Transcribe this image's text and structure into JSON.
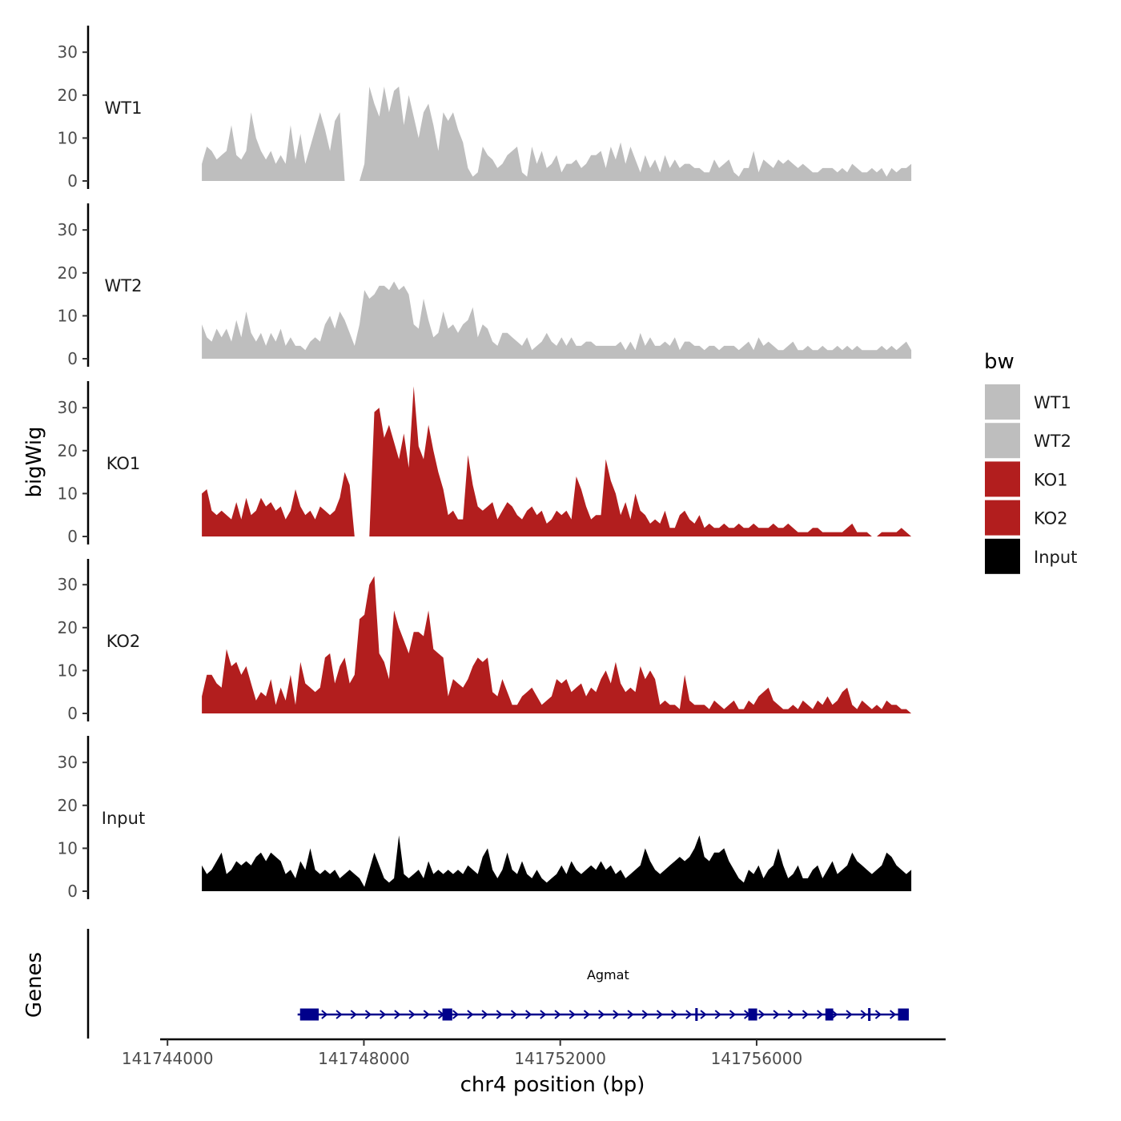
{
  "chart_data": {
    "type": "area",
    "title": "",
    "xlabel": "chr4 position (bp)",
    "ylabel": "bigWig",
    "genes_label": "Genes",
    "xlim": [
      141743850,
      141759850
    ],
    "ylim": [
      0,
      35
    ],
    "x_ticks": [
      141744000,
      141748000,
      141752000,
      141756000
    ],
    "x_tick_labels": [
      "141744000",
      "141748000",
      "141752000",
      "141756000"
    ],
    "y_ticks": [
      0,
      10,
      20,
      30
    ],
    "y_tick_labels": [
      "0",
      "10",
      "20",
      "30"
    ],
    "legend": {
      "title": "bw",
      "entries": [
        {
          "name": "WT1",
          "color": "#bebebe"
        },
        {
          "name": "WT2",
          "color": "#bebebe"
        },
        {
          "name": "KO1",
          "color": "#b21e1e"
        },
        {
          "name": "KO2",
          "color": "#b21e1e"
        },
        {
          "name": "Input",
          "color": "#000000"
        }
      ]
    },
    "x_start": 141744700,
    "x_end": 141759150,
    "series": [
      {
        "name": "WT1",
        "color": "#bebebe",
        "values": [
          4,
          8,
          7,
          5,
          6,
          7,
          13,
          6,
          5,
          7,
          16,
          10,
          7,
          5,
          7,
          4,
          6,
          4,
          13,
          5,
          11,
          4,
          8,
          12,
          16,
          12,
          7,
          14,
          16,
          0,
          0,
          0,
          0,
          4,
          22,
          18,
          15,
          22,
          16,
          21,
          22,
          13,
          20,
          15,
          10,
          16,
          18,
          13,
          7,
          16,
          14,
          16,
          12,
          9,
          3,
          1,
          2,
          8,
          6,
          5,
          3,
          4,
          6,
          7,
          8,
          2,
          1,
          8,
          4,
          7,
          3,
          4,
          6,
          2,
          4,
          4,
          5,
          3,
          4,
          6,
          6,
          7,
          3,
          8,
          5,
          9,
          4,
          8,
          5,
          2,
          6,
          3,
          5,
          2,
          6,
          3,
          5,
          3,
          4,
          4,
          3,
          3,
          2,
          2,
          5,
          3,
          4,
          5,
          2,
          1,
          3,
          3,
          7,
          2,
          5,
          4,
          3,
          5,
          4,
          5,
          4,
          3,
          4,
          3,
          2,
          2,
          3,
          3,
          3,
          2,
          3,
          2,
          4,
          3,
          2,
          2,
          3,
          2,
          3,
          1,
          3,
          2,
          3,
          3,
          4
        ]
      },
      {
        "name": "WT2",
        "color": "#bebebe",
        "values": [
          8,
          5,
          4,
          7,
          5,
          7,
          4,
          9,
          5,
          11,
          6,
          4,
          6,
          3,
          6,
          4,
          7,
          3,
          5,
          3,
          3,
          2,
          4,
          5,
          4,
          8,
          10,
          7,
          11,
          9,
          6,
          3,
          8,
          16,
          14,
          15,
          17,
          17,
          16,
          18,
          16,
          17,
          15,
          8,
          7,
          14,
          9,
          5,
          6,
          11,
          7,
          8,
          6,
          8,
          9,
          12,
          5,
          8,
          7,
          4,
          3,
          6,
          6,
          5,
          4,
          3,
          5,
          2,
          3,
          4,
          6,
          4,
          3,
          5,
          3,
          5,
          3,
          3,
          4,
          4,
          3,
          3,
          3,
          3,
          3,
          4,
          2,
          4,
          2,
          6,
          3,
          5,
          3,
          3,
          4,
          3,
          5,
          2,
          4,
          4,
          3,
          3,
          2,
          3,
          3,
          2,
          3,
          3,
          3,
          2,
          3,
          4,
          2,
          5,
          3,
          4,
          3,
          2,
          2,
          3,
          4,
          2,
          2,
          3,
          2,
          2,
          3,
          2,
          2,
          3,
          2,
          3,
          2,
          3,
          2,
          2,
          2,
          2,
          3,
          2,
          3,
          2,
          3,
          4,
          2
        ]
      },
      {
        "name": "KO1",
        "color": "#b21e1e",
        "values": [
          10,
          11,
          6,
          5,
          6,
          5,
          4,
          8,
          4,
          9,
          5,
          6,
          9,
          7,
          8,
          6,
          7,
          4,
          6,
          11,
          7,
          5,
          6,
          4,
          7,
          6,
          5,
          6,
          9,
          15,
          12,
          0,
          0,
          0,
          0,
          29,
          30,
          23,
          26,
          22,
          18,
          24,
          16,
          35,
          21,
          18,
          26,
          20,
          15,
          11,
          5,
          6,
          4,
          4,
          19,
          12,
          7,
          6,
          7,
          8,
          4,
          6,
          8,
          7,
          5,
          4,
          6,
          7,
          5,
          6,
          3,
          4,
          6,
          5,
          6,
          4,
          14,
          11,
          7,
          4,
          5,
          5,
          18,
          13,
          10,
          5,
          8,
          4,
          10,
          6,
          5,
          3,
          4,
          3,
          6,
          2,
          2,
          5,
          6,
          4,
          3,
          5,
          2,
          3,
          2,
          2,
          3,
          2,
          2,
          3,
          2,
          2,
          3,
          2,
          2,
          2,
          3,
          2,
          2,
          3,
          2,
          1,
          1,
          1,
          2,
          2,
          1,
          1,
          1,
          1,
          1,
          2,
          3,
          1,
          1,
          1,
          0,
          0,
          1,
          1,
          1,
          1,
          2,
          1,
          0
        ]
      },
      {
        "name": "KO2",
        "color": "#b21e1e",
        "values": [
          4,
          9,
          9,
          7,
          6,
          15,
          11,
          12,
          9,
          11,
          7,
          3,
          5,
          4,
          8,
          2,
          6,
          3,
          9,
          2,
          12,
          7,
          6,
          5,
          6,
          13,
          14,
          7,
          11,
          13,
          7,
          9,
          22,
          23,
          30,
          32,
          14,
          12,
          8,
          24,
          20,
          17,
          14,
          19,
          19,
          18,
          24,
          15,
          14,
          13,
          4,
          8,
          7,
          6,
          8,
          11,
          13,
          12,
          13,
          5,
          4,
          8,
          5,
          2,
          2,
          4,
          5,
          6,
          4,
          2,
          3,
          4,
          8,
          7,
          8,
          5,
          6,
          7,
          4,
          6,
          5,
          8,
          10,
          7,
          12,
          7,
          5,
          6,
          5,
          11,
          8,
          10,
          8,
          2,
          3,
          2,
          2,
          1,
          9,
          3,
          2,
          2,
          2,
          1,
          3,
          2,
          1,
          2,
          3,
          1,
          1,
          3,
          2,
          4,
          5,
          6,
          3,
          2,
          1,
          1,
          2,
          1,
          3,
          2,
          1,
          3,
          2,
          4,
          2,
          3,
          5,
          6,
          2,
          1,
          3,
          2,
          1,
          2,
          1,
          3,
          2,
          2,
          1,
          1,
          0
        ]
      },
      {
        "name": "Input",
        "color": "#000000",
        "values": [
          6,
          4,
          5,
          7,
          9,
          4,
          5,
          7,
          6,
          7,
          6,
          8,
          9,
          7,
          9,
          8,
          7,
          4,
          5,
          3,
          7,
          5,
          10,
          5,
          4,
          5,
          4,
          5,
          3,
          4,
          5,
          4,
          3,
          1,
          5,
          9,
          6,
          3,
          2,
          3,
          13,
          4,
          3,
          4,
          5,
          3,
          7,
          4,
          5,
          4,
          5,
          4,
          5,
          4,
          6,
          5,
          4,
          8,
          10,
          5,
          3,
          5,
          9,
          5,
          4,
          7,
          4,
          3,
          5,
          3,
          2,
          3,
          4,
          6,
          4,
          7,
          5,
          4,
          5,
          6,
          5,
          7,
          5,
          6,
          4,
          5,
          3,
          4,
          5,
          6,
          10,
          7,
          5,
          4,
          5,
          6,
          7,
          8,
          7,
          8,
          10,
          13,
          8,
          7,
          9,
          9,
          10,
          7,
          5,
          3,
          2,
          5,
          4,
          6,
          3,
          5,
          6,
          10,
          6,
          3,
          4,
          6,
          3,
          3,
          5,
          6,
          3,
          5,
          7,
          4,
          5,
          6,
          9,
          7,
          6,
          5,
          4,
          5,
          6,
          9,
          8,
          6,
          5,
          4,
          5
        ]
      }
    ],
    "genes": [
      {
        "name": "Agmat",
        "start": 141746650,
        "end": 141759100,
        "strand": "+",
        "color": "#00008b",
        "exons": [
          [
            141746700,
            141747080
          ],
          [
            141749600,
            141749800
          ],
          [
            141754750,
            141754800
          ],
          [
            141755830,
            141756010
          ],
          [
            141757400,
            141757560
          ],
          [
            141758270,
            141758320
          ],
          [
            141758880,
            141759100
          ]
        ]
      }
    ]
  }
}
